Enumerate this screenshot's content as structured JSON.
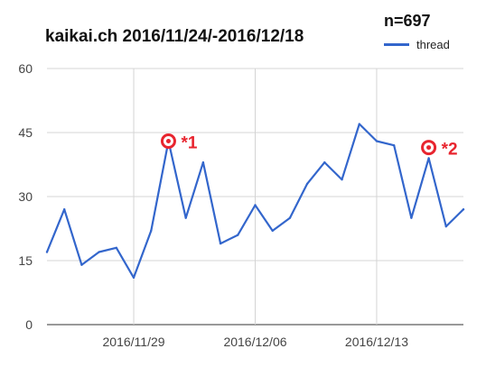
{
  "chart_data": {
    "type": "line",
    "title": "kaikai.ch 2016/11/24/-2016/12/18",
    "count_label": "n=697",
    "xlabel": "",
    "ylabel": "",
    "ylim": [
      0,
      60
    ],
    "yticks": [
      0,
      15,
      30,
      45,
      60
    ],
    "x_tick_labels": [
      "2016/11/29",
      "2016/12/06",
      "2016/12/13"
    ],
    "x_tick_dates": [
      "2016/11/29",
      "2016/12/06",
      "2016/12/13"
    ],
    "x": [
      "2016/11/24",
      "2016/11/25",
      "2016/11/26",
      "2016/11/27",
      "2016/11/28",
      "2016/11/29",
      "2016/11/30",
      "2016/12/01",
      "2016/12/02",
      "2016/12/03",
      "2016/12/04",
      "2016/12/05",
      "2016/12/06",
      "2016/12/07",
      "2016/12/08",
      "2016/12/09",
      "2016/12/10",
      "2016/12/11",
      "2016/12/12",
      "2016/12/13",
      "2016/12/14",
      "2016/12/15",
      "2016/12/16",
      "2016/12/17",
      "2016/12/18"
    ],
    "series": [
      {
        "name": "thread",
        "color": "#3366cc",
        "values": [
          17,
          27,
          14,
          17,
          18,
          11,
          22,
          43,
          25,
          38,
          19,
          21,
          28,
          22,
          25,
          33,
          38,
          34,
          47,
          43,
          42,
          25,
          39,
          23,
          27
        ]
      }
    ],
    "grid": true,
    "legend_position": "top-right",
    "annotations": [
      {
        "label": "*1",
        "x": "2016/12/01",
        "y": 43,
        "color": "#e8252f"
      },
      {
        "label": "*2",
        "x": "2016/12/16",
        "y": 41.5,
        "color": "#e8252f"
      }
    ]
  }
}
